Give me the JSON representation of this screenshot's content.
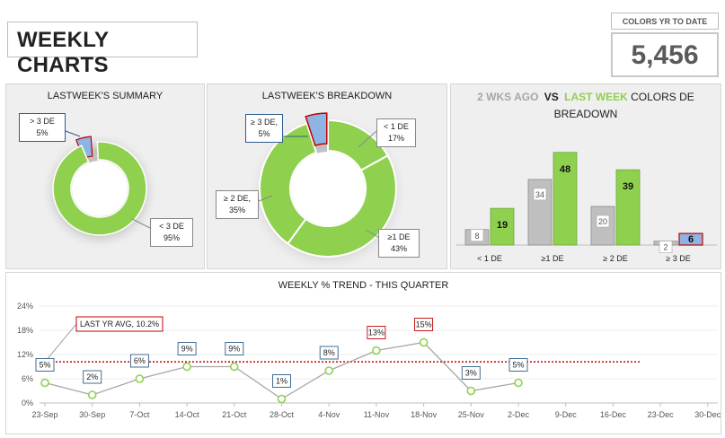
{
  "header": {
    "title": "WEEKLY CHARTS"
  },
  "ytd": {
    "label": "COLORS YR TO DATE",
    "value": "5,456"
  },
  "colors": {
    "green": "#8fd14f",
    "blue": "#8db4e2",
    "gray": "#bfbfbf",
    "red": "#c00000"
  },
  "chart_data": [
    {
      "type": "pie",
      "title": "LASTWEEK'S SUMMARY",
      "slices": [
        {
          "label": "< 3 DE",
          "value": 95,
          "display": "95%"
        },
        {
          "label": "> 3 DE",
          "value": 5,
          "display": "5%"
        }
      ]
    },
    {
      "type": "pie",
      "title": "LASTWEEK'S BREAKDOWN",
      "slices": [
        {
          "label": "< 1 DE",
          "value": 17,
          "display": "17%"
        },
        {
          "label": "≥1 DE",
          "value": 43,
          "display": "43%"
        },
        {
          "label": "≥ 2 DE,",
          "value": 35,
          "display": "35%"
        },
        {
          "label": "≥ 3 DE,",
          "value": 5,
          "display": "5%"
        }
      ]
    },
    {
      "type": "bar",
      "title_parts": [
        "2 WKS AGO",
        "VS",
        "LAST WEEK",
        "COLORS DE BREADOWN"
      ],
      "categories": [
        "< 1 DE",
        "≥1 DE",
        "≥ 2 DE",
        "≥ 3 DE"
      ],
      "series": [
        {
          "name": "2 WKS AGO",
          "values": [
            8,
            34,
            20,
            2
          ]
        },
        {
          "name": "LAST WEEK",
          "values": [
            19,
            48,
            39,
            6
          ]
        }
      ],
      "ylim": [
        0,
        60
      ]
    },
    {
      "type": "line",
      "title": "WEEKLY % TREND - THIS QUARTER",
      "x": [
        "23-Sep",
        "30-Sep",
        "7-Oct",
        "14-Oct",
        "21-Oct",
        "28-Oct",
        "4-Nov",
        "11-Nov",
        "18-Nov",
        "25-Nov",
        "2-Dec",
        "9-Dec",
        "16-Dec",
        "23-Dec",
        "30-Dec"
      ],
      "values": [
        5,
        2,
        6,
        9,
        9,
        1,
        8,
        13,
        15,
        3,
        5
      ],
      "labels": [
        "5%",
        "2%",
        "6%",
        "9%",
        "9%",
        "1%",
        "8%",
        "13%",
        "15%",
        "3%",
        "5%"
      ],
      "yticks": [
        "0%",
        "6%",
        "12%",
        "18%",
        "24%"
      ],
      "ylim": [
        0,
        24
      ],
      "reference": {
        "label": "LAST YR AVG, 10.2%",
        "value": 10.2
      }
    }
  ]
}
